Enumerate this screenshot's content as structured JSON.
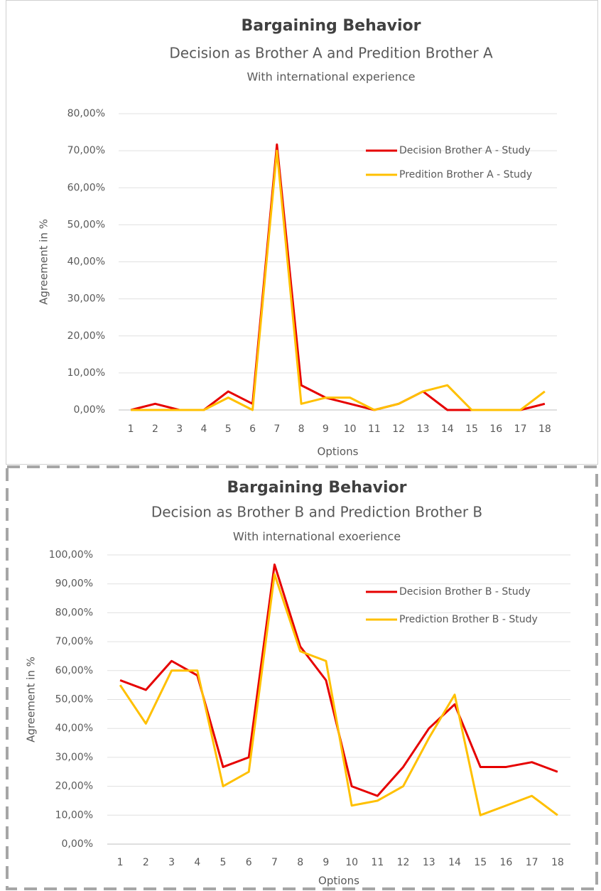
{
  "chart_data": [
    {
      "type": "line",
      "title": "Bargaining Behavior",
      "subtitle": "Decision as Brother A and Predition Brother A",
      "note": "With international experience",
      "y_label": "Agreement in %",
      "x_label": "Options",
      "categories": [
        "1",
        "2",
        "3",
        "4",
        "5",
        "6",
        "7",
        "8",
        "9",
        "10",
        "11",
        "12",
        "13",
        "14",
        "15",
        "16",
        "17",
        "18"
      ],
      "series": [
        {
          "name": "Decision Brother A - Study",
          "color": "#e60000",
          "values": [
            0,
            1.67,
            0,
            0,
            5,
            1.67,
            71.67,
            6.67,
            3.33,
            1.67,
            0,
            1.67,
            5,
            0,
            0,
            0,
            0,
            1.67
          ]
        },
        {
          "name": "Predition Brother A - Study",
          "color": "#ffc000",
          "values": [
            0,
            0,
            0,
            0,
            3.33,
            0,
            70,
            1.67,
            3.33,
            3.33,
            0,
            1.67,
            5,
            6.67,
            0,
            0,
            0,
            5
          ]
        }
      ],
      "ylim": [
        0,
        80
      ],
      "yticks": [
        {
          "value": 0,
          "label": "0,00%"
        },
        {
          "value": 10,
          "label": "10,00%"
        },
        {
          "value": 20,
          "label": "20,00%"
        },
        {
          "value": 30,
          "label": "30,00%"
        },
        {
          "value": 40,
          "label": "40,00%"
        },
        {
          "value": 50,
          "label": "50,00%"
        },
        {
          "value": 60,
          "label": "60,00%"
        },
        {
          "value": 70,
          "label": "70,00%"
        },
        {
          "value": 80,
          "label": "80,00%"
        }
      ],
      "grid": true,
      "legend": "upper right"
    },
    {
      "type": "line",
      "title": "Bargaining Behavior",
      "subtitle": "Decision as Brother B and Prediction Brother B",
      "note": "With international exoerience",
      "y_label": "Agreement in %",
      "x_label": "Options",
      "categories": [
        "1",
        "2",
        "3",
        "4",
        "5",
        "6",
        "7",
        "8",
        "9",
        "10",
        "11",
        "12",
        "13",
        "14",
        "15",
        "16",
        "17",
        "18"
      ],
      "series": [
        {
          "name": "Decision Brother B - Study",
          "color": "#e60000",
          "values": [
            56.67,
            53.33,
            63.33,
            58.33,
            26.67,
            30,
            96.67,
            68.33,
            56.67,
            20,
            16.67,
            26.67,
            40,
            48.33,
            26.67,
            26.67,
            28.33,
            25
          ]
        },
        {
          "name": "Prediction Brother B - Study",
          "color": "#ffc000",
          "values": [
            55,
            41.67,
            60,
            60,
            20,
            25,
            93.33,
            66.67,
            63.33,
            13.33,
            15,
            20,
            36.67,
            51.67,
            10,
            13.33,
            16.67,
            10
          ]
        }
      ],
      "ylim": [
        0,
        100
      ],
      "yticks": [
        {
          "value": 0,
          "label": "0,00%"
        },
        {
          "value": 10,
          "label": "10,00%"
        },
        {
          "value": 20,
          "label": "20,00%"
        },
        {
          "value": 30,
          "label": "30,00%"
        },
        {
          "value": 40,
          "label": "40,00%"
        },
        {
          "value": 50,
          "label": "50,00%"
        },
        {
          "value": 60,
          "label": "60,00%"
        },
        {
          "value": 70,
          "label": "70,00%"
        },
        {
          "value": 80,
          "label": "80,00%"
        },
        {
          "value": 90,
          "label": "90,00%"
        },
        {
          "value": 100,
          "label": "100,00%"
        }
      ],
      "grid": true,
      "legend": "upper right"
    }
  ]
}
